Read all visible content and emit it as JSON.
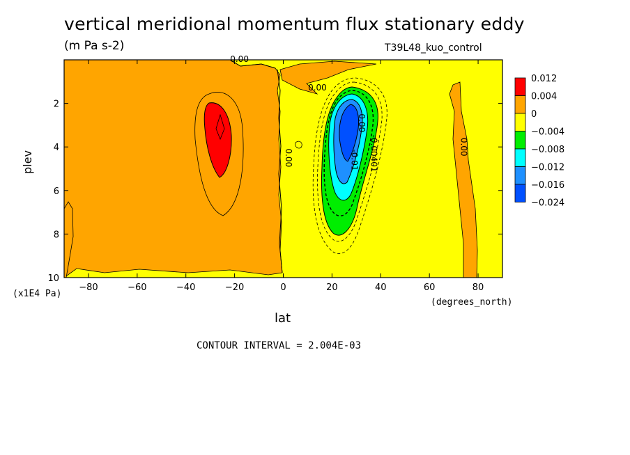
{
  "chart_data": {
    "type": "heatmap",
    "title": "vertical meridional momentum flux stationary eddy",
    "units": "(m Pa s-2)",
    "run_label": "T39L48_kuo_control",
    "xlabel": "lat",
    "x_units": "(degrees_north)",
    "ylabel": "plev",
    "y_units": "(x1E4 Pa)",
    "xlim": [
      -90,
      90
    ],
    "ylim": [
      0,
      10
    ],
    "y_inverted": true,
    "x_ticks": [
      -80,
      -60,
      -40,
      -20,
      0,
      20,
      40,
      60,
      80
    ],
    "y_ticks": [
      2,
      4,
      6,
      8,
      10
    ],
    "footer": "CONTOUR INTERVAL = 2.004E-03",
    "colorbar": {
      "labels": [
        "0.012",
        "0.004",
        "0",
        "-0.004",
        "-0.008",
        "-0.012",
        "-0.016",
        "-0.024"
      ],
      "colors": [
        "#ff0000",
        "#ffa500",
        "#ffff00",
        "#00ee00",
        "#00ffff",
        "#1e90ff",
        "#0050ff"
      ]
    },
    "contour_labels": [
      {
        "text": "0.00",
        "lat": -18,
        "p": 0.1
      },
      {
        "text": "0.00",
        "lat": 14,
        "p": 1.4
      },
      {
        "text": "0.00",
        "lat": 1,
        "p": 4.5
      },
      {
        "text": "0.00",
        "lat": 73,
        "p": 4.0
      },
      {
        "text": "-0.01",
        "lat": 28,
        "p": 4.6
      },
      {
        "text": "-0.00401",
        "lat": 36,
        "p": 4.3
      },
      {
        "text": "0.00",
        "lat": 31,
        "p": 2.9
      }
    ],
    "features": [
      {
        "name": "positive maximum",
        "lat": -26,
        "p": 3.0,
        "value_band": "> 0.004"
      },
      {
        "name": "negative minimum",
        "lat": 26,
        "p": 3.2,
        "value_band": "< -0.016"
      }
    ]
  }
}
